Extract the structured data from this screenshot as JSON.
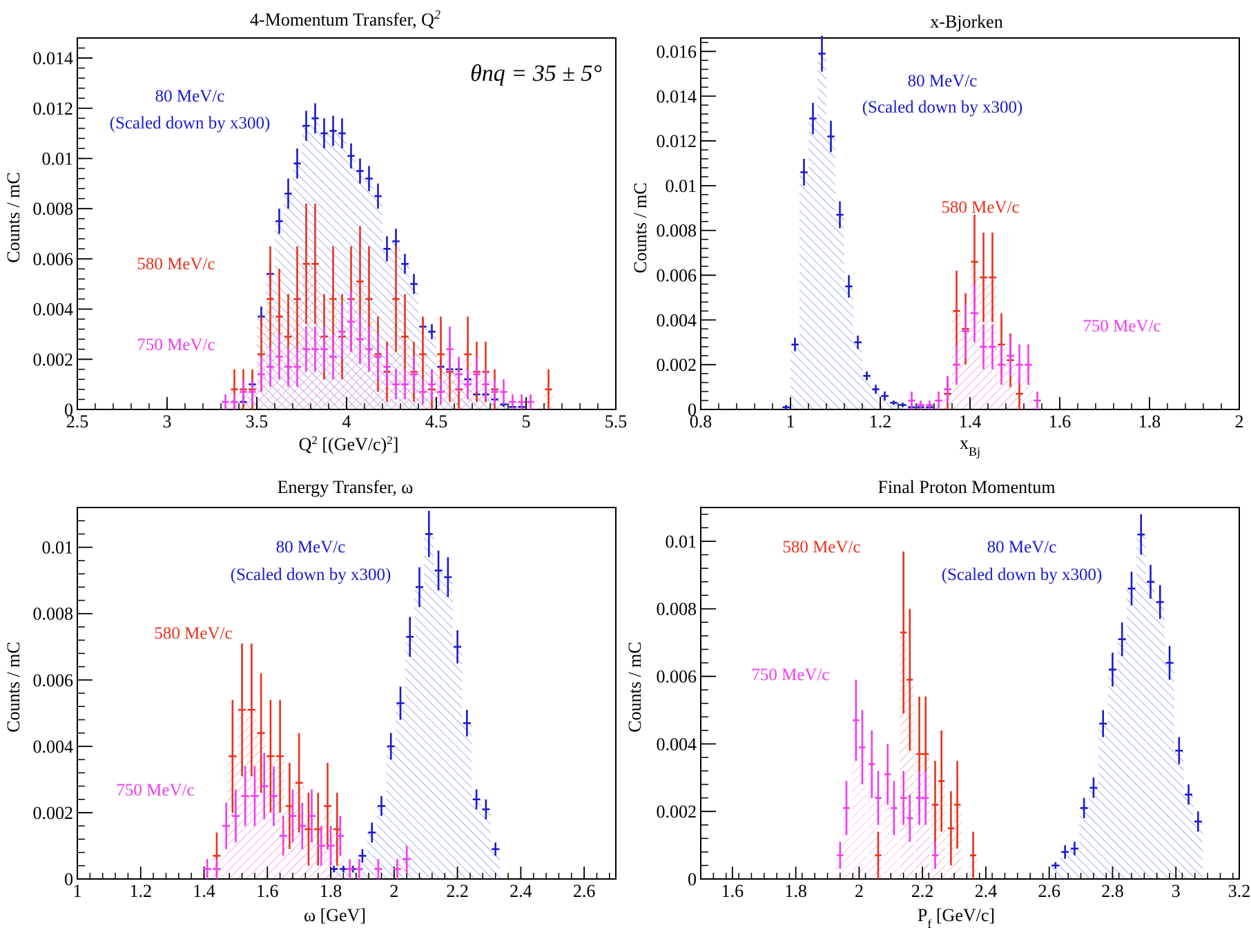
{
  "colors": {
    "scaled_80": "#1a1ad0",
    "p580": "#e8321e",
    "p750": "#ee3cee",
    "hatch_blue": "#6f7fe8",
    "hatch_red": "#f08a8a",
    "axis": "#000000"
  },
  "chart_data": [
    {
      "id": "q2",
      "type": "histogram",
      "title": "4-Momentum Transfer, Q",
      "title_sup": "2",
      "xlabel": "Q",
      "xlabel_sup": "2",
      "xlabel_rest": " [(GeV/c)",
      "xlabel_sup2": "2",
      "xlabel_end": "]",
      "ylabel": "Counts / mC",
      "xlim": [
        2.5,
        5.5
      ],
      "ylim": [
        0,
        0.0148
      ],
      "xticks": [
        "2.5",
        "3",
        "3.5",
        "4",
        "4.5",
        "5",
        "5.5"
      ],
      "yticks": [
        "0",
        "0.002",
        "0.004",
        "0.006",
        "0.008",
        "0.01",
        "0.012",
        "0.014"
      ],
      "annotation": "θnq = 35 ± 5°",
      "series_labels": [
        {
          "series": "80",
          "lines": [
            "80 MeV/c",
            "(Scaled down by x300)"
          ]
        },
        {
          "series": "580",
          "lines": [
            "580 MeV/c"
          ]
        },
        {
          "series": "750",
          "lines": [
            "750 MeV/c"
          ]
        }
      ],
      "series": [
        {
          "id": "80",
          "binwidth": 0.05,
          "x": [
            3.425,
            3.475,
            3.525,
            3.575,
            3.625,
            3.675,
            3.725,
            3.775,
            3.825,
            3.875,
            3.925,
            3.975,
            4.025,
            4.075,
            4.125,
            4.175,
            4.225,
            4.275,
            4.325,
            4.375,
            4.425,
            4.475,
            4.525,
            4.575,
            4.625,
            4.675,
            4.725,
            4.775,
            4.825,
            4.875,
            4.925,
            4.975
          ],
          "y": [
            0.0003,
            0.001,
            0.0037,
            0.0054,
            0.0075,
            0.0086,
            0.0098,
            0.0113,
            0.0116,
            0.011,
            0.0111,
            0.011,
            0.0101,
            0.0095,
            0.0092,
            0.0085,
            0.0064,
            0.0067,
            0.0058,
            0.005,
            0.0033,
            0.0031,
            0.0017,
            0.0016,
            0.0016,
            0.0012,
            0.0006,
            0.0006,
            0.0004,
            0.0002,
            0.0001,
            0.0001
          ],
          "err": [
            0.0002,
            0.0004,
            0.0004,
            0.0005,
            0.0005,
            0.0006,
            0.0006,
            0.0006,
            0.0006,
            0.0006,
            0.0006,
            0.0006,
            0.0005,
            0.0005,
            0.0005,
            0.0005,
            0.0005,
            0.0005,
            0.0004,
            0.0004,
            0.0003,
            0.0003,
            0.0003,
            0.0003,
            0.0003,
            0.0002,
            0.0002,
            0.0002,
            0.0002,
            0.0001,
            0.0001,
            0.0001
          ]
        },
        {
          "id": "580",
          "binwidth": 0.05,
          "x": [
            3.375,
            3.425,
            3.475,
            3.525,
            3.575,
            3.625,
            3.675,
            3.725,
            3.775,
            3.825,
            3.875,
            3.925,
            3.975,
            4.025,
            4.075,
            4.125,
            4.175,
            4.225,
            4.275,
            4.325,
            4.375,
            4.425,
            4.475,
            4.525,
            4.575,
            4.625,
            4.675,
            4.725,
            4.775,
            4.825,
            5.125
          ],
          "y": [
            0.0008,
            0.0008,
            0.0008,
            0.0022,
            0.0044,
            0.0037,
            0.0029,
            0.0044,
            0.0058,
            0.0058,
            0.0029,
            0.0044,
            0.0029,
            0.0044,
            0.0051,
            0.0044,
            0.0022,
            0.0015,
            0.0044,
            0.0029,
            0.0015,
            0.0022,
            0.0008,
            0.0022,
            0.0015,
            0.0008,
            0.0022,
            0.0015,
            0.0015,
            0.0008,
            0.0008
          ],
          "err": [
            0.0008,
            0.0008,
            0.0008,
            0.0015,
            0.0021,
            0.0019,
            0.0017,
            0.0021,
            0.0024,
            0.0024,
            0.0017,
            0.0021,
            0.0017,
            0.0021,
            0.0022,
            0.0021,
            0.0015,
            0.0012,
            0.0021,
            0.0017,
            0.0012,
            0.0015,
            0.0008,
            0.0015,
            0.0012,
            0.0008,
            0.0015,
            0.0012,
            0.0012,
            0.0008,
            0.0008
          ]
        },
        {
          "id": "750",
          "binwidth": 0.05,
          "x": [
            3.325,
            3.375,
            3.425,
            3.475,
            3.525,
            3.575,
            3.625,
            3.675,
            3.725,
            3.775,
            3.825,
            3.875,
            3.925,
            3.975,
            4.025,
            4.075,
            4.125,
            4.175,
            4.225,
            4.275,
            4.325,
            4.375,
            4.425,
            4.475,
            4.525,
            4.575,
            4.625,
            4.675,
            4.725,
            4.775,
            4.825,
            4.875,
            4.925,
            4.975,
            5.025
          ],
          "y": [
            0.0003,
            0.0003,
            0.0007,
            0.0007,
            0.0014,
            0.0017,
            0.0021,
            0.0017,
            0.0017,
            0.0024,
            0.0024,
            0.0024,
            0.0021,
            0.0031,
            0.0035,
            0.0028,
            0.0024,
            0.0021,
            0.0017,
            0.001,
            0.001,
            0.0014,
            0.0007,
            0.001,
            0.0007,
            0.0024,
            0.0014,
            0.001,
            0.0014,
            0.001,
            0.0007,
            0.0007,
            0.0003,
            0.0003,
            0.0003
          ],
          "err": [
            0.0003,
            0.0003,
            0.0005,
            0.0005,
            0.0007,
            0.0008,
            0.0009,
            0.0008,
            0.0008,
            0.0009,
            0.0009,
            0.0009,
            0.0009,
            0.0011,
            0.0012,
            0.001,
            0.0009,
            0.0009,
            0.0008,
            0.0006,
            0.0006,
            0.0007,
            0.0005,
            0.0006,
            0.0005,
            0.0009,
            0.0007,
            0.0006,
            0.0007,
            0.0006,
            0.0005,
            0.0005,
            0.0003,
            0.0003,
            0.0003
          ]
        }
      ]
    },
    {
      "id": "xbj",
      "type": "histogram",
      "title": "x-Bjorken",
      "xlabel": "x",
      "xlabel_sub": "Bj",
      "ylabel": "Counts / mC",
      "xlim": [
        0.8,
        2.0
      ],
      "ylim": [
        0,
        0.0166
      ],
      "xticks": [
        "0.8",
        "1",
        "1.2",
        "1.4",
        "1.6",
        "1.8",
        "2"
      ],
      "yticks": [
        "0",
        "0.002",
        "0.004",
        "0.006",
        "0.008",
        "0.01",
        "0.012",
        "0.014",
        "0.016"
      ],
      "series_labels": [
        {
          "series": "80",
          "lines": [
            "80 MeV/c",
            "(Scaled down by x300)"
          ]
        },
        {
          "series": "580",
          "lines": [
            "580 MeV/c"
          ]
        },
        {
          "series": "750",
          "lines": [
            "750 MeV/c"
          ]
        }
      ],
      "series": [
        {
          "id": "80",
          "binwidth": 0.02,
          "x": [
            0.99,
            1.01,
            1.03,
            1.05,
            1.07,
            1.09,
            1.11,
            1.13,
            1.15,
            1.17,
            1.19,
            1.21,
            1.23,
            1.25,
            1.27,
            1.29,
            1.31
          ],
          "y": [
            0.0001,
            0.0029,
            0.0106,
            0.013,
            0.0159,
            0.0122,
            0.0087,
            0.0055,
            0.003,
            0.0015,
            0.0009,
            0.0006,
            0.0003,
            0.0002,
            0.0001,
            0.0001,
            0.0001
          ],
          "err": [
            0.0001,
            0.0003,
            0.0006,
            0.0007,
            0.0008,
            0.0007,
            0.0006,
            0.0005,
            0.0003,
            0.0002,
            0.0002,
            0.0002,
            0.0001,
            0.0001,
            0.0001,
            0.0001,
            0.0001
          ]
        },
        {
          "id": "580",
          "binwidth": 0.02,
          "x": [
            1.35,
            1.37,
            1.39,
            1.41,
            1.43,
            1.45,
            1.47,
            1.49,
            1.51
          ],
          "y": [
            0.0007,
            0.0044,
            0.0036,
            0.0066,
            0.0059,
            0.0059,
            0.0029,
            0.0022,
            0.0007
          ],
          "err": [
            0.0007,
            0.0018,
            0.0016,
            0.0021,
            0.002,
            0.002,
            0.0014,
            0.0012,
            0.0007
          ]
        },
        {
          "id": "750",
          "binwidth": 0.02,
          "x": [
            1.27,
            1.29,
            1.31,
            1.33,
            1.35,
            1.37,
            1.39,
            1.41,
            1.43,
            1.45,
            1.47,
            1.49,
            1.51,
            1.53,
            1.55
          ],
          "y": [
            0.0004,
            0.0002,
            0.0002,
            0.0004,
            0.0009,
            0.002,
            0.0035,
            0.0043,
            0.0028,
            0.0028,
            0.002,
            0.0024,
            0.002,
            0.002,
            0.0004
          ],
          "err": [
            0.0004,
            0.0002,
            0.0002,
            0.0004,
            0.0006,
            0.0009,
            0.0012,
            0.0013,
            0.001,
            0.001,
            0.0009,
            0.0009,
            0.0009,
            0.0009,
            0.0004
          ]
        }
      ]
    },
    {
      "id": "omega",
      "type": "histogram",
      "title": "Energy Transfer, ω",
      "xlabel": "ω [GeV]",
      "ylabel": "Counts / mC",
      "xlim": [
        1.0,
        2.7
      ],
      "ylim": [
        0,
        0.0112
      ],
      "xticks": [
        "1",
        "1.2",
        "1.4",
        "1.6",
        "1.8",
        "2",
        "2.2",
        "2.4",
        "2.6"
      ],
      "yticks": [
        "0",
        "0.002",
        "0.004",
        "0.006",
        "0.008",
        "0.01"
      ],
      "series_labels": [
        {
          "series": "80",
          "lines": [
            "80 MeV/c",
            "(Scaled down by x300)"
          ]
        },
        {
          "series": "580",
          "lines": [
            "580 MeV/c"
          ]
        },
        {
          "series": "750",
          "lines": [
            "750 MeV/c"
          ]
        }
      ],
      "series": [
        {
          "id": "80",
          "binwidth": 0.03,
          "x": [
            1.81,
            1.84,
            1.87,
            1.9,
            1.93,
            1.96,
            1.99,
            2.02,
            2.05,
            2.08,
            2.11,
            2.14,
            2.17,
            2.2,
            2.23,
            2.26,
            2.29,
            2.32
          ],
          "y": [
            0.0003,
            0.0003,
            0.0003,
            0.0007,
            0.0014,
            0.0022,
            0.004,
            0.0053,
            0.0073,
            0.0088,
            0.0104,
            0.0093,
            0.0091,
            0.007,
            0.0047,
            0.0024,
            0.0021,
            0.0009
          ],
          "err": [
            0.0001,
            0.0001,
            0.0001,
            0.0002,
            0.0003,
            0.0003,
            0.0004,
            0.0005,
            0.0006,
            0.0006,
            0.0007,
            0.0006,
            0.0006,
            0.0005,
            0.0004,
            0.0003,
            0.0003,
            0.0002
          ]
        },
        {
          "id": "580",
          "binwidth": 0.03,
          "x": [
            1.44,
            1.49,
            1.52,
            1.55,
            1.58,
            1.61,
            1.64,
            1.67,
            1.7,
            1.73,
            1.76,
            1.79,
            1.82
          ],
          "y": [
            0.0007,
            0.0037,
            0.0051,
            0.0051,
            0.0044,
            0.0037,
            0.0037,
            0.0022,
            0.0029,
            0.0015,
            0.0015,
            0.0022,
            0.0015
          ],
          "err": [
            0.0007,
            0.0017,
            0.002,
            0.002,
            0.0018,
            0.0017,
            0.0017,
            0.0013,
            0.0015,
            0.0011,
            0.0011,
            0.0013,
            0.0011
          ]
        },
        {
          "id": "750",
          "binwidth": 0.03,
          "x": [
            1.41,
            1.44,
            1.47,
            1.5,
            1.53,
            1.56,
            1.59,
            1.62,
            1.65,
            1.68,
            1.71,
            1.74,
            1.77,
            1.8,
            1.83,
            1.86,
            1.89,
            1.95,
            2.01,
            2.04
          ],
          "y": [
            0.0003,
            0.0003,
            0.0016,
            0.0019,
            0.0025,
            0.0025,
            0.0028,
            0.0025,
            0.0013,
            0.0019,
            0.0016,
            0.0019,
            0.001,
            0.001,
            0.0013,
            0.0003,
            0.0003,
            0.0003,
            0.0003,
            0.0006
          ],
          "err": [
            0.0003,
            0.0003,
            0.0007,
            0.0008,
            0.0009,
            0.0009,
            0.001,
            0.0009,
            0.0006,
            0.0008,
            0.0007,
            0.0008,
            0.0006,
            0.0006,
            0.0006,
            0.0003,
            0.0003,
            0.0003,
            0.0003,
            0.0004
          ]
        }
      ]
    },
    {
      "id": "pf",
      "type": "histogram",
      "title": "Final Proton Momentum",
      "xlabel": "P",
      "xlabel_sub": "f",
      "xlabel_rest": " [GeV/c]",
      "ylabel": "Counts / mC",
      "xlim": [
        1.5,
        3.2
      ],
      "ylim": [
        0,
        0.011
      ],
      "xticks": [
        "1.6",
        "1.8",
        "2",
        "2.2",
        "2.4",
        "2.6",
        "2.8",
        "3",
        "3.2"
      ],
      "yticks": [
        "0",
        "0.002",
        "0.004",
        "0.006",
        "0.008",
        "0.01"
      ],
      "series_labels": [
        {
          "series": "580",
          "lines": [
            "580 MeV/c"
          ]
        },
        {
          "series": "80",
          "lines": [
            "80 MeV/c",
            "(Scaled down by x300)"
          ]
        },
        {
          "series": "750",
          "lines": [
            "750 MeV/c"
          ]
        }
      ],
      "series": [
        {
          "id": "80",
          "binwidth": 0.03,
          "x": [
            2.62,
            2.65,
            2.68,
            2.71,
            2.74,
            2.77,
            2.8,
            2.83,
            2.86,
            2.89,
            2.92,
            2.95,
            2.98,
            3.01,
            3.04,
            3.07
          ],
          "y": [
            0.0004,
            0.0008,
            0.0009,
            0.0021,
            0.0027,
            0.0046,
            0.0062,
            0.0071,
            0.0086,
            0.0102,
            0.0088,
            0.0082,
            0.0064,
            0.0038,
            0.0025,
            0.0017
          ],
          "err": [
            0.0001,
            0.0002,
            0.0002,
            0.0003,
            0.0003,
            0.0004,
            0.0005,
            0.0005,
            0.0005,
            0.0006,
            0.0005,
            0.0005,
            0.0005,
            0.0004,
            0.0003,
            0.0003
          ]
        },
        {
          "id": "580",
          "binwidth": 0.025,
          "x": [
            2.06,
            2.14,
            2.16,
            2.19,
            2.21,
            2.24,
            2.26,
            2.29,
            2.31,
            2.36
          ],
          "y": [
            0.0007,
            0.0073,
            0.0059,
            0.0037,
            0.0037,
            0.0022,
            0.0029,
            0.0015,
            0.0022,
            0.0007
          ],
          "err": [
            0.0007,
            0.0024,
            0.0021,
            0.0017,
            0.0017,
            0.0013,
            0.0015,
            0.0011,
            0.0013,
            0.0007
          ]
        },
        {
          "id": "750",
          "binwidth": 0.025,
          "x": [
            1.94,
            1.96,
            1.99,
            2.01,
            2.04,
            2.06,
            2.09,
            2.11,
            2.14,
            2.16,
            2.19,
            2.21,
            2.24
          ],
          "y": [
            0.0007,
            0.0021,
            0.0047,
            0.0039,
            0.0034,
            0.0024,
            0.0031,
            0.0021,
            0.0024,
            0.0018,
            0.0024,
            0.0024,
            0.0007
          ],
          "err": [
            0.0004,
            0.0008,
            0.0012,
            0.0011,
            0.001,
            0.0008,
            0.0009,
            0.0008,
            0.0008,
            0.0007,
            0.0008,
            0.0008,
            0.0004
          ]
        }
      ]
    }
  ]
}
